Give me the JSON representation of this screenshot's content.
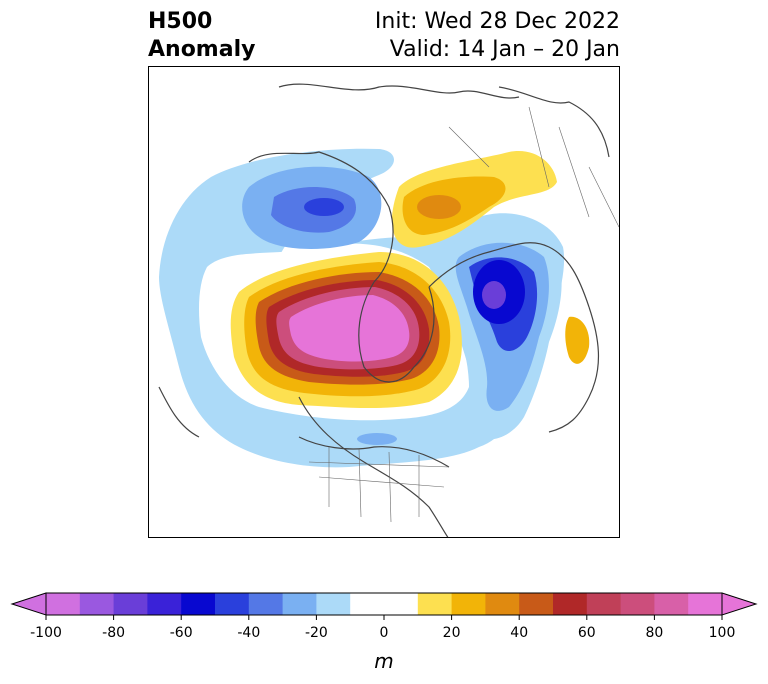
{
  "header": {
    "title_line1": "H500",
    "title_line2": "Anomaly",
    "init_text": "Init: Wed 28 Dec 2022",
    "valid_text": "Valid: 14 Jan – 20 Jan"
  },
  "colorbar": {
    "unit_label": "m",
    "ticks": [
      "-100",
      "-80",
      "-60",
      "-40",
      "-20",
      "0",
      "20",
      "40",
      "60",
      "80",
      "100"
    ],
    "range": [
      -100,
      100
    ],
    "bin_size": 10,
    "colors": [
      "#d070e0",
      "#9a58e0",
      "#6a3ed8",
      "#3a22d8",
      "#0808d0",
      "#2a40dc",
      "#5478e6",
      "#7ab0f2",
      "#acdaf8",
      "#ffffff",
      "#ffffff",
      "#fde050",
      "#f2b408",
      "#e08a10",
      "#c85a18",
      "#b02828",
      "#c04058",
      "#cc4e7c",
      "#d860a8",
      "#e674d8"
    ],
    "extend": "both"
  },
  "map": {
    "projection": "polar-stereographic",
    "region": "northern-hemisphere",
    "variable": "500 hPa geopotential height anomaly"
  }
}
